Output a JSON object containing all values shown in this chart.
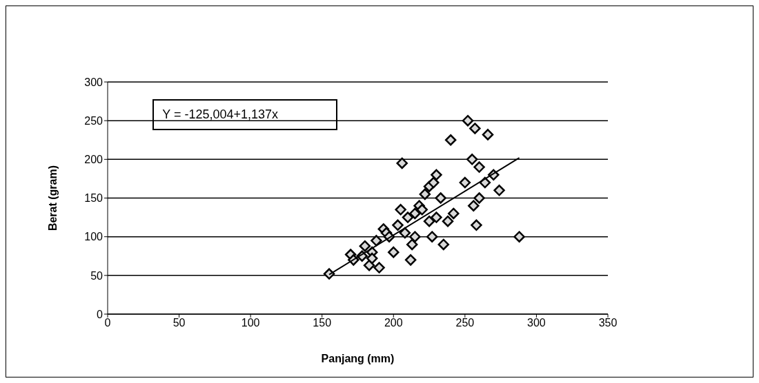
{
  "chart_data": {
    "type": "scatter",
    "xlabel": "Panjang (mm)",
    "ylabel": "Berat (gram)",
    "annotations": [
      "Y = -125,004+1,137x"
    ],
    "xlim": [
      0,
      350
    ],
    "xticks": [
      0,
      50,
      100,
      150,
      200,
      250,
      300,
      350
    ],
    "ylim": [
      0,
      300
    ],
    "yticks": [
      0,
      50,
      100,
      150,
      200,
      250,
      300
    ],
    "grid": "y",
    "marker": "diamond",
    "series": [
      {
        "color": "#000000",
        "x": [
          155,
          170,
          172,
          178,
          180,
          183,
          185,
          185,
          188,
          190,
          193,
          195,
          197,
          200,
          203,
          205,
          206,
          208,
          210,
          212,
          213,
          215,
          215,
          218,
          220,
          222,
          225,
          225,
          227,
          228,
          230,
          230,
          233,
          235,
          238,
          240,
          242,
          250,
          252,
          255,
          256,
          257,
          258,
          260,
          260,
          264,
          266,
          270,
          274,
          288
        ],
        "values": [
          52,
          77,
          70,
          75,
          88,
          63,
          80,
          72,
          95,
          60,
          110,
          105,
          100,
          80,
          115,
          135,
          195,
          105,
          125,
          70,
          90,
          130,
          100,
          140,
          135,
          155,
          165,
          120,
          100,
          170,
          125,
          180,
          150,
          90,
          120,
          225,
          130,
          170,
          250,
          200,
          140,
          240,
          115,
          150,
          190,
          170,
          232,
          180,
          160,
          100
        ]
      },
      {
        "type": "line",
        "color": "#000000",
        "marker": "none",
        "x": [
          155,
          288
        ],
        "values": [
          51,
          202
        ]
      }
    ]
  }
}
